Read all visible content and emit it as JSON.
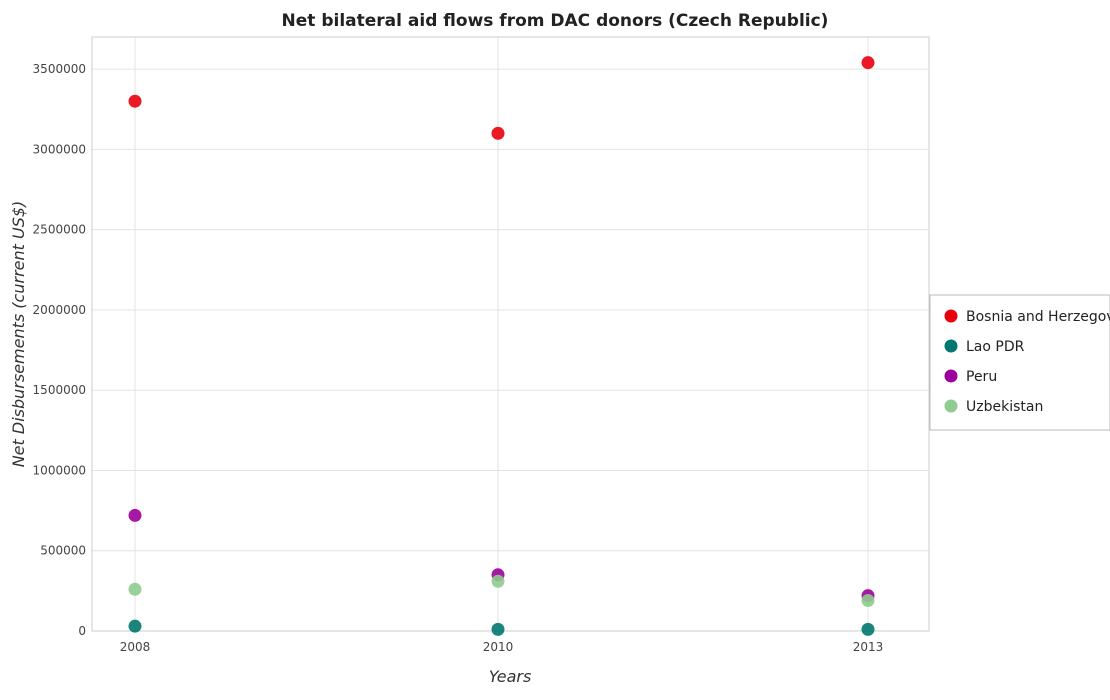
{
  "chart_data": {
    "type": "scatter",
    "title": "Net bilateral aid flows from DAC donors (Czech Republic)",
    "xlabel": "Years",
    "ylabel": "Net Disbursements (current US$)",
    "categories": [
      "2008",
      "2010",
      "2013"
    ],
    "ylim": [
      0,
      3700000
    ],
    "yticks": [
      0,
      500000,
      1000000,
      1500000,
      2000000,
      2500000,
      3000000,
      3500000
    ],
    "ytick_labels": [
      "0",
      "500000",
      "1000000",
      "1500000",
      "2000000",
      "2500000",
      "3000000",
      "3500000"
    ],
    "grid": true,
    "legend_position": "right",
    "series": [
      {
        "name": "Bosnia and Herzegovina",
        "color": "#e8000b",
        "values": [
          3300000,
          3100000,
          3540000
        ]
      },
      {
        "name": "Lao PDR",
        "color": "#00786f",
        "values": [
          30000,
          10000,
          10000
        ]
      },
      {
        "name": "Peru",
        "color": "#9c009c",
        "values": [
          720000,
          350000,
          220000
        ]
      },
      {
        "name": "Uzbekistan",
        "color": "#8fcc8f",
        "values": [
          260000,
          310000,
          190000
        ]
      }
    ]
  }
}
